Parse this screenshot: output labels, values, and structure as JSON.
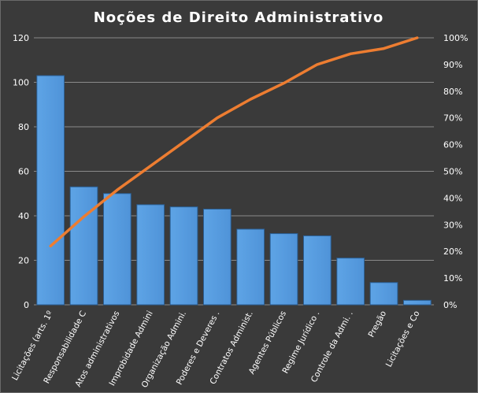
{
  "chart_data": {
    "type": "bar",
    "title": "Noções  de  Direito  Administrativo",
    "categories": [
      "Licitações (arts. 1º",
      "Responsabilidade C",
      "Atos administrativos",
      "Improbidade Admini",
      "Organização Admini.",
      "Poderes e Deveres .",
      "Contratos Administ.",
      "Agentes Públicos",
      "Regime Jurídico .",
      "Controle da Admi. .",
      "Pregão",
      "Licitações e Co"
    ],
    "series": [
      {
        "type": "bar",
        "axis": "left",
        "color": "#4f93d8",
        "values": [
          103,
          53,
          50,
          45,
          44,
          43,
          34,
          32,
          31,
          21,
          10,
          2
        ]
      },
      {
        "type": "line",
        "axis": "right",
        "color": "#ed7d31",
        "values": [
          0.22,
          0.33,
          0.43,
          0.52,
          0.61,
          0.7,
          0.77,
          0.83,
          0.9,
          0.94,
          0.96,
          1.0
        ]
      }
    ],
    "yaxis_left": {
      "min": 0,
      "max": 120,
      "ticks": [
        0,
        20,
        40,
        60,
        80,
        100,
        120
      ],
      "tick_labels": [
        "0",
        "20",
        "40",
        "60",
        "80",
        "100",
        "120"
      ]
    },
    "yaxis_right": {
      "min": 0,
      "max": 1,
      "ticks": [
        0,
        0.1,
        0.2,
        0.3,
        0.4,
        0.5,
        0.6,
        0.7,
        0.8,
        0.9,
        1.0
      ],
      "tick_labels": [
        "0%",
        "10%",
        "20%",
        "30%",
        "40%",
        "50%",
        "60%",
        "70%",
        "80%",
        "90%",
        "100%"
      ]
    },
    "grid": "horizontal",
    "legend": "none",
    "colors": {
      "background": "#3a3a3a",
      "text": "#ffffff",
      "grid": "#8a8a8a"
    }
  }
}
